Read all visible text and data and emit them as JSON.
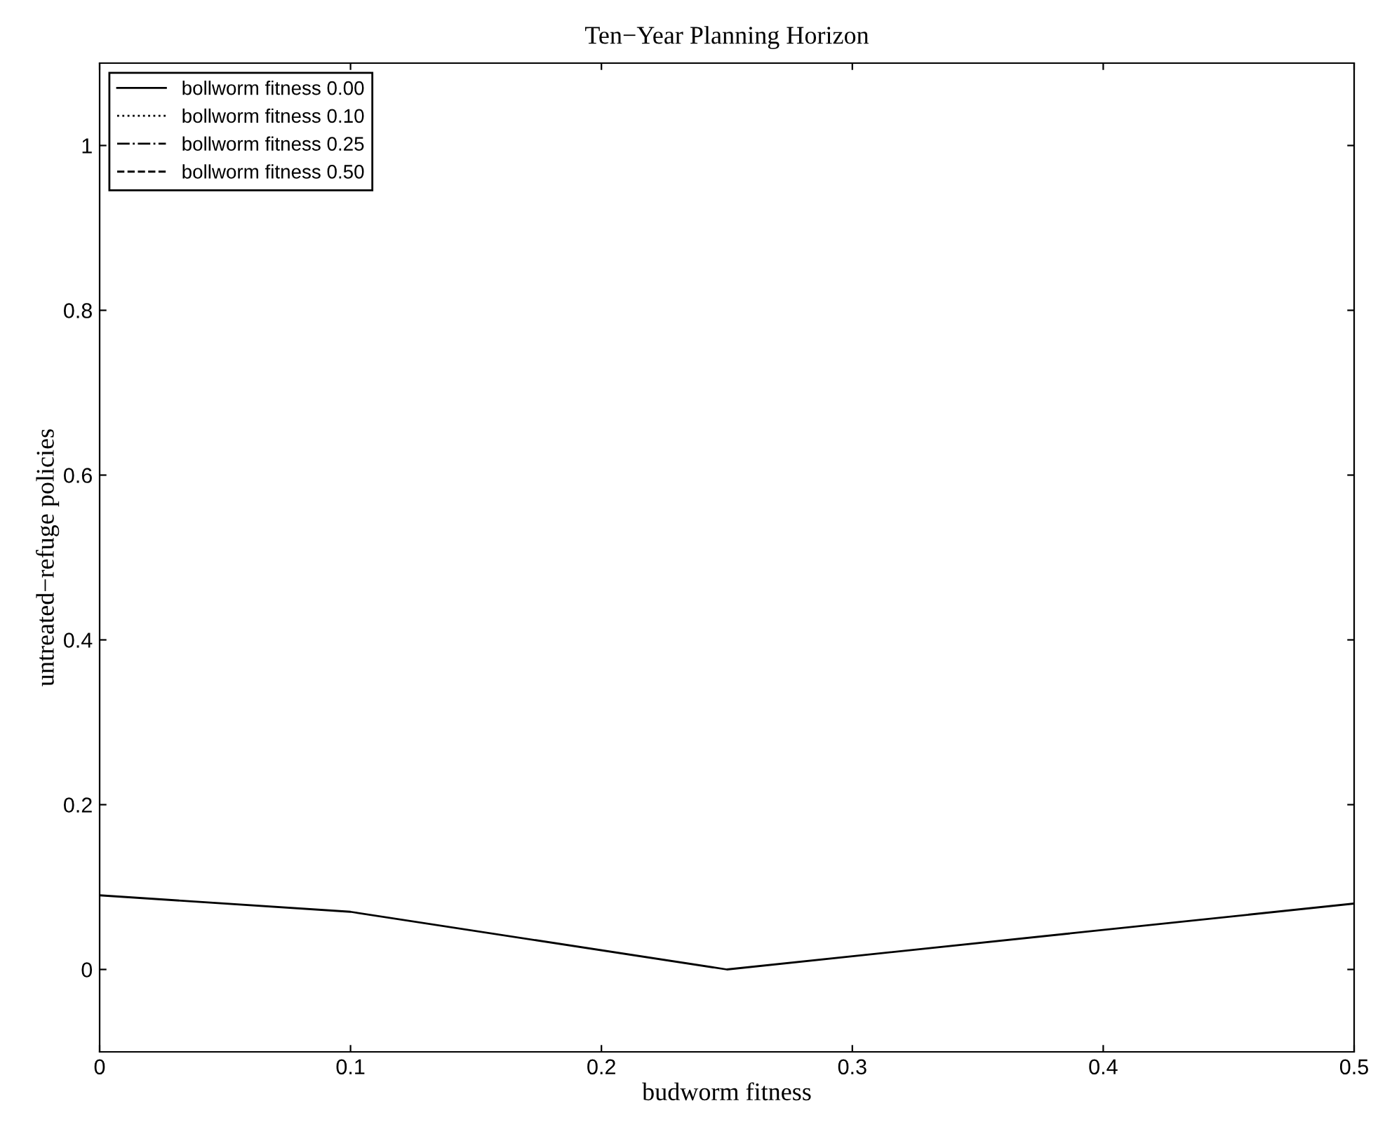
{
  "chart_data": {
    "type": "line",
    "title": "Ten−Year Planning Horizon",
    "xlabel": "budworm fitness",
    "ylabel": "untreated−refuge policies",
    "x": [
      0,
      0.1,
      0.25,
      0.5
    ],
    "series": [
      {
        "name": "bollworm fitness 0.00",
        "color": "#000000",
        "line_style": "solid",
        "values": [
          0.09,
          0.07,
          0,
          0.08
        ]
      },
      {
        "name": "bollworm fitness 0.10",
        "color": "#000000",
        "line_style": "dotted",
        "values": [
          null,
          null,
          null,
          null
        ]
      },
      {
        "name": "bollworm fitness 0.25",
        "color": "#000000",
        "line_style": "dashdot",
        "values": [
          null,
          null,
          null,
          null
        ]
      },
      {
        "name": "bollworm fitness 0.50",
        "color": "#000000",
        "line_style": "dashed",
        "values": [
          null,
          null,
          null,
          null
        ]
      }
    ],
    "xlim": [
      0,
      0.5
    ],
    "xticks": [
      0,
      0.1,
      0.2,
      0.3,
      0.4,
      0.5
    ],
    "ylim": [
      -0.1,
      1.1
    ],
    "yticks": [
      0,
      0.2,
      0.4,
      0.6,
      0.8,
      1
    ],
    "legend": "top left",
    "grid": false,
    "marker": "none"
  }
}
